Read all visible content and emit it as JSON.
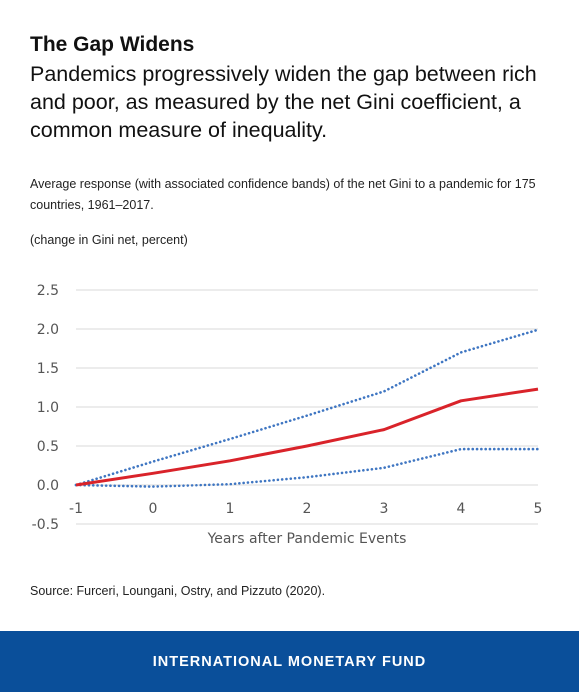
{
  "header": {
    "title": "The Gap Widens",
    "subtitle": "Pandemics progressively widen the gap between rich and poor, as measured by the net Gini coefficient, a common measure of inequality.",
    "note": "Average response (with associated confidence bands) of the net Gini to a pandemic for 175 countries, 1961–2017.",
    "units": "(change in Gini net, percent)"
  },
  "source": "Source: Furceri, Loungani, Ostry, and Pizzuto (2020).",
  "footer": {
    "label": "INTERNATIONAL MONETARY FUND",
    "color": "#0a4f9a"
  },
  "chart_data": {
    "type": "line",
    "xlabel": "Years after Pandemic Events",
    "ylabel": "",
    "x": [
      -1,
      0,
      1,
      2,
      3,
      4,
      5
    ],
    "xlim": [
      -1,
      5
    ],
    "ylim": [
      -0.5,
      2.5
    ],
    "yticks": [
      "2.5",
      "2.0",
      "1.5",
      "1.0",
      "0.5",
      "0.0",
      "-0.5"
    ],
    "xticks": [
      "-1",
      "0",
      "1",
      "2",
      "3",
      "4",
      "5"
    ],
    "grid": true,
    "series": [
      {
        "role": "estimate",
        "values": [
          0.0,
          0.15,
          0.31,
          0.5,
          0.71,
          1.08,
          1.23
        ],
        "color": "#d9232a",
        "style": "solid"
      },
      {
        "role": "upper band",
        "values": [
          0.0,
          0.3,
          0.59,
          0.89,
          1.2,
          1.7,
          1.99
        ],
        "color": "#3f76c2",
        "style": "dotted"
      },
      {
        "role": "lower band",
        "values": [
          0.0,
          -0.02,
          0.01,
          0.1,
          0.22,
          0.46,
          0.46
        ],
        "color": "#3f76c2",
        "style": "dotted"
      }
    ]
  }
}
